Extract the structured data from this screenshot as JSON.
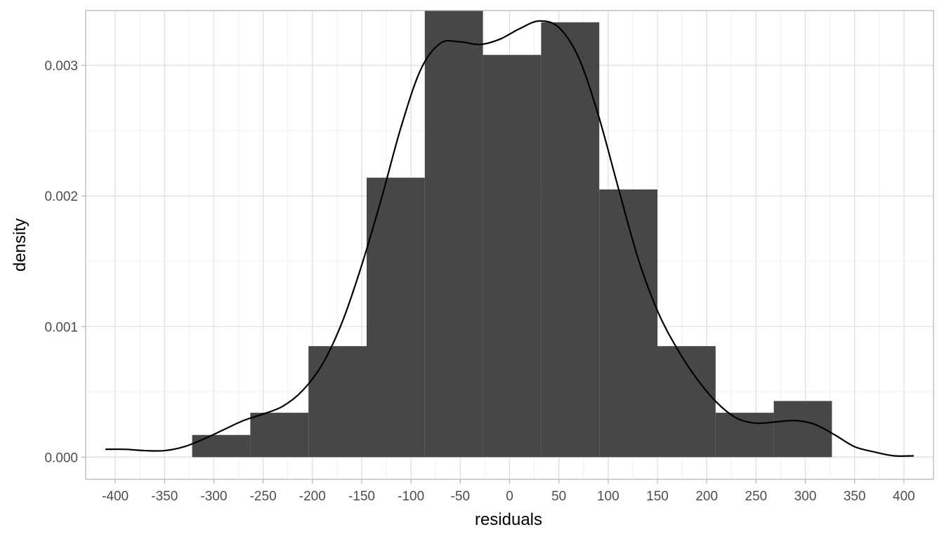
{
  "chart_data": {
    "type": "bar",
    "subtype": "histogram-with-density",
    "title": "",
    "xlabel": "residuals",
    "ylabel": "density",
    "xlim": [
      -430,
      430
    ],
    "ylim": [
      -0.00017,
      0.00342
    ],
    "grid": true,
    "x_ticks": [
      -400,
      -350,
      -300,
      -250,
      -200,
      -150,
      -100,
      -50,
      0,
      50,
      100,
      150,
      200,
      250,
      300,
      350,
      400
    ],
    "x_tick_labels": [
      "-400",
      "-350",
      "-300",
      "-250",
      "-200",
      "-150",
      "-100",
      "-50",
      "0",
      "50",
      "100",
      "150",
      "200",
      "250",
      "300",
      "350",
      "400"
    ],
    "y_ticks": [
      0,
      0.001,
      0.002,
      0.003
    ],
    "y_tick_labels": [
      "0.000",
      "0.001",
      "0.002",
      "0.003"
    ],
    "bins": [
      {
        "x0": -322,
        "x1": -263,
        "density": 0.00017
      },
      {
        "x0": -263,
        "x1": -204,
        "density": 0.00034
      },
      {
        "x0": -204,
        "x1": -145,
        "density": 0.00085
      },
      {
        "x0": -145,
        "x1": -86,
        "density": 0.00214
      },
      {
        "x0": -86,
        "x1": -27,
        "density": 0.00342
      },
      {
        "x0": -27,
        "x1": 32,
        "density": 0.00308
      },
      {
        "x0": 32,
        "x1": 91,
        "density": 0.00333
      },
      {
        "x0": 91,
        "x1": 150,
        "density": 0.00205
      },
      {
        "x0": 150,
        "x1": 209,
        "density": 0.00085
      },
      {
        "x0": 209,
        "x1": 268,
        "density": 0.00034
      },
      {
        "x0": 268,
        "x1": 327,
        "density": 0.00043
      }
    ],
    "density_curve": {
      "x": [
        -410,
        -390,
        -370,
        -350,
        -330,
        -310,
        -290,
        -270,
        -250,
        -230,
        -210,
        -190,
        -170,
        -150,
        -130,
        -110,
        -90,
        -70,
        -50,
        -30,
        -10,
        10,
        30,
        50,
        70,
        90,
        110,
        130,
        150,
        170,
        190,
        210,
        230,
        250,
        270,
        290,
        310,
        330,
        350,
        370,
        390,
        410
      ],
      "y": [
        6e-05,
        6e-05,
        5e-05,
        5e-05,
        8e-05,
        0.00014,
        0.00021,
        0.00028,
        0.00033,
        0.00039,
        0.00051,
        0.00071,
        0.00103,
        0.00147,
        0.00198,
        0.00253,
        0.00297,
        0.00317,
        0.00318,
        0.00316,
        0.0032,
        0.00328,
        0.00334,
        0.00329,
        0.00306,
        0.00262,
        0.00207,
        0.00153,
        0.00112,
        0.00083,
        0.0006,
        0.00042,
        0.0003,
        0.00026,
        0.00027,
        0.00028,
        0.00025,
        0.00017,
        8e-05,
        4e-05,
        1e-05,
        1e-05
      ]
    },
    "colors": {
      "bar_fill": "#474747",
      "curve": "#000000",
      "grid_major": "#dedede",
      "grid_minor": "#efefef",
      "panel_border": "#b3b3b3",
      "tick_text": "#4d4d4d",
      "tick_mark": "#b3b3b3"
    }
  }
}
